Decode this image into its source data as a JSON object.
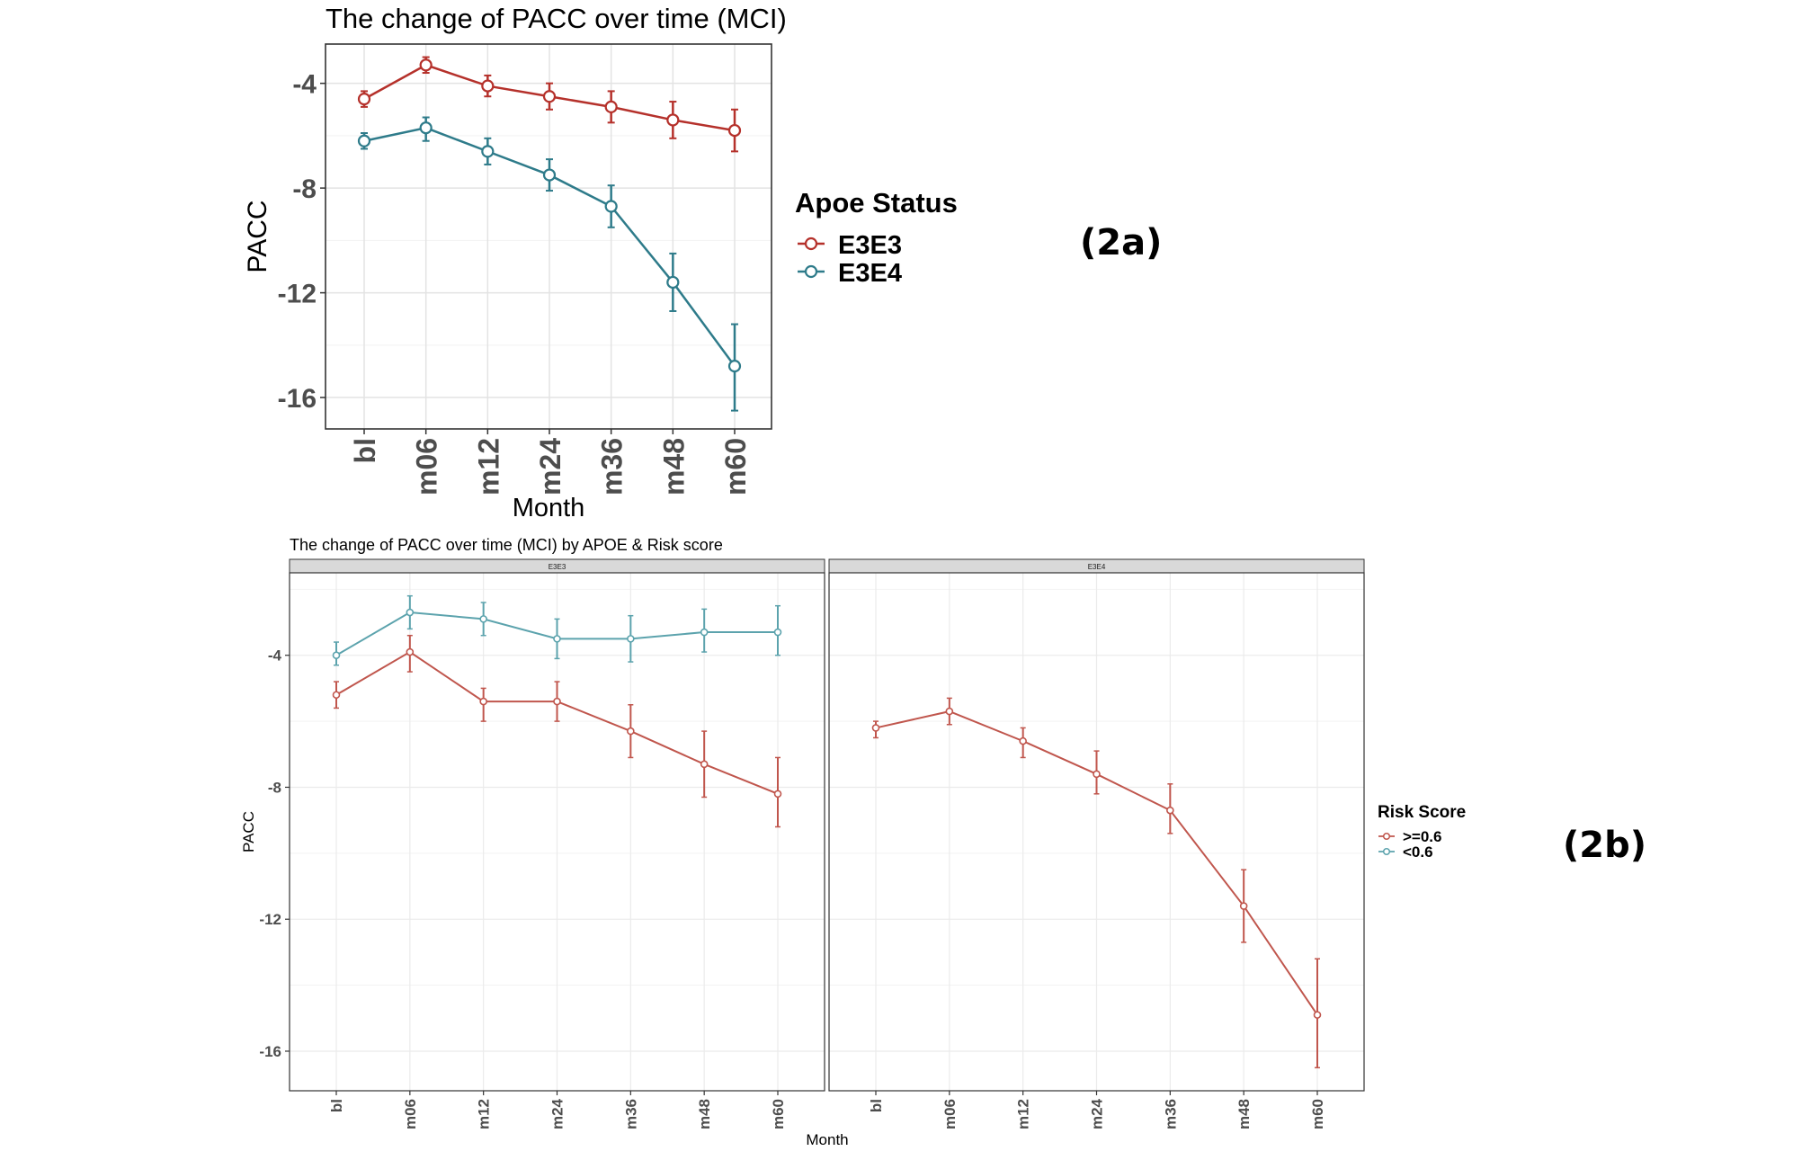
{
  "figure_tags": [
    "(2a)",
    "(2b)"
  ],
  "chart_data": [
    {
      "type": "line",
      "title": "The change of PACC over time (MCI)",
      "xlabel": "Month",
      "ylabel": "PACC",
      "categories": [
        "bl",
        "m06",
        "m12",
        "m24",
        "m36",
        "m48",
        "m60"
      ],
      "ylim": [
        -17.2,
        -2.5
      ],
      "yticks": [
        -4,
        -8,
        -12,
        -16
      ],
      "grid": true,
      "legend": {
        "title": "Apoe Status",
        "position": "right"
      },
      "series": [
        {
          "name": "E3E3",
          "color": "#b5312b",
          "values": [
            -4.6,
            -3.3,
            -4.1,
            -4.5,
            -4.9,
            -5.4,
            -5.8
          ],
          "err_low": [
            -4.9,
            -3.6,
            -4.5,
            -5.0,
            -5.5,
            -6.1,
            -6.6
          ],
          "err_high": [
            -4.3,
            -3.0,
            -3.7,
            -4.0,
            -4.3,
            -4.7,
            -5.0
          ]
        },
        {
          "name": "E3E4",
          "color": "#2e7b8a",
          "values": [
            -6.2,
            -5.7,
            -6.6,
            -7.5,
            -8.7,
            -11.6,
            -14.8
          ],
          "err_low": [
            -6.5,
            -6.2,
            -7.1,
            -8.1,
            -9.5,
            -12.7,
            -16.5
          ],
          "err_high": [
            -5.9,
            -5.3,
            -6.1,
            -6.9,
            -7.9,
            -10.5,
            -13.2
          ]
        }
      ]
    },
    {
      "type": "line",
      "title": "The change of PACC over time (MCI) by APOE & Risk score",
      "xlabel": "Month",
      "ylabel": "PACC",
      "categories": [
        "bl",
        "m06",
        "m12",
        "m24",
        "m36",
        "m48",
        "m60"
      ],
      "ylim": [
        -17.2,
        -1.5
      ],
      "yticks": [
        -4,
        -8,
        -12,
        -16
      ],
      "grid": true,
      "legend": {
        "title": "Risk Score",
        "position": "right",
        "entries": [
          ">=0.6",
          "<0.6"
        ]
      },
      "facets": [
        {
          "label": "E3E3",
          "series": [
            {
              "name": ">=0.6",
              "color": "#c0564d",
              "values": [
                -5.2,
                -3.9,
                -5.4,
                -5.4,
                -6.3,
                -7.3,
                -8.2
              ],
              "err_low": [
                -5.6,
                -4.5,
                -6.0,
                -6.0,
                -7.1,
                -8.3,
                -9.2
              ],
              "err_high": [
                -4.8,
                -3.4,
                -5.0,
                -4.8,
                -5.5,
                -6.3,
                -7.1
              ]
            },
            {
              "name": "<0.6",
              "color": "#5ca3ad",
              "values": [
                -4.0,
                -2.7,
                -2.9,
                -3.5,
                -3.5,
                -3.3,
                -3.3
              ],
              "err_low": [
                -4.3,
                -3.2,
                -3.4,
                -4.1,
                -4.2,
                -3.9,
                -4.0
              ],
              "err_high": [
                -3.6,
                -2.2,
                -2.4,
                -2.9,
                -2.8,
                -2.6,
                -2.5
              ]
            }
          ]
        },
        {
          "label": "E3E4",
          "series": [
            {
              "name": ">=0.6",
              "color": "#c0564d",
              "values": [
                -6.2,
                -5.7,
                -6.6,
                -7.6,
                -8.7,
                -11.6,
                -14.9
              ],
              "err_low": [
                -6.5,
                -6.1,
                -7.1,
                -8.2,
                -9.4,
                -12.7,
                -16.5
              ],
              "err_high": [
                -6.0,
                -5.3,
                -6.2,
                -6.9,
                -7.9,
                -10.5,
                -13.2
              ]
            }
          ]
        }
      ]
    }
  ]
}
